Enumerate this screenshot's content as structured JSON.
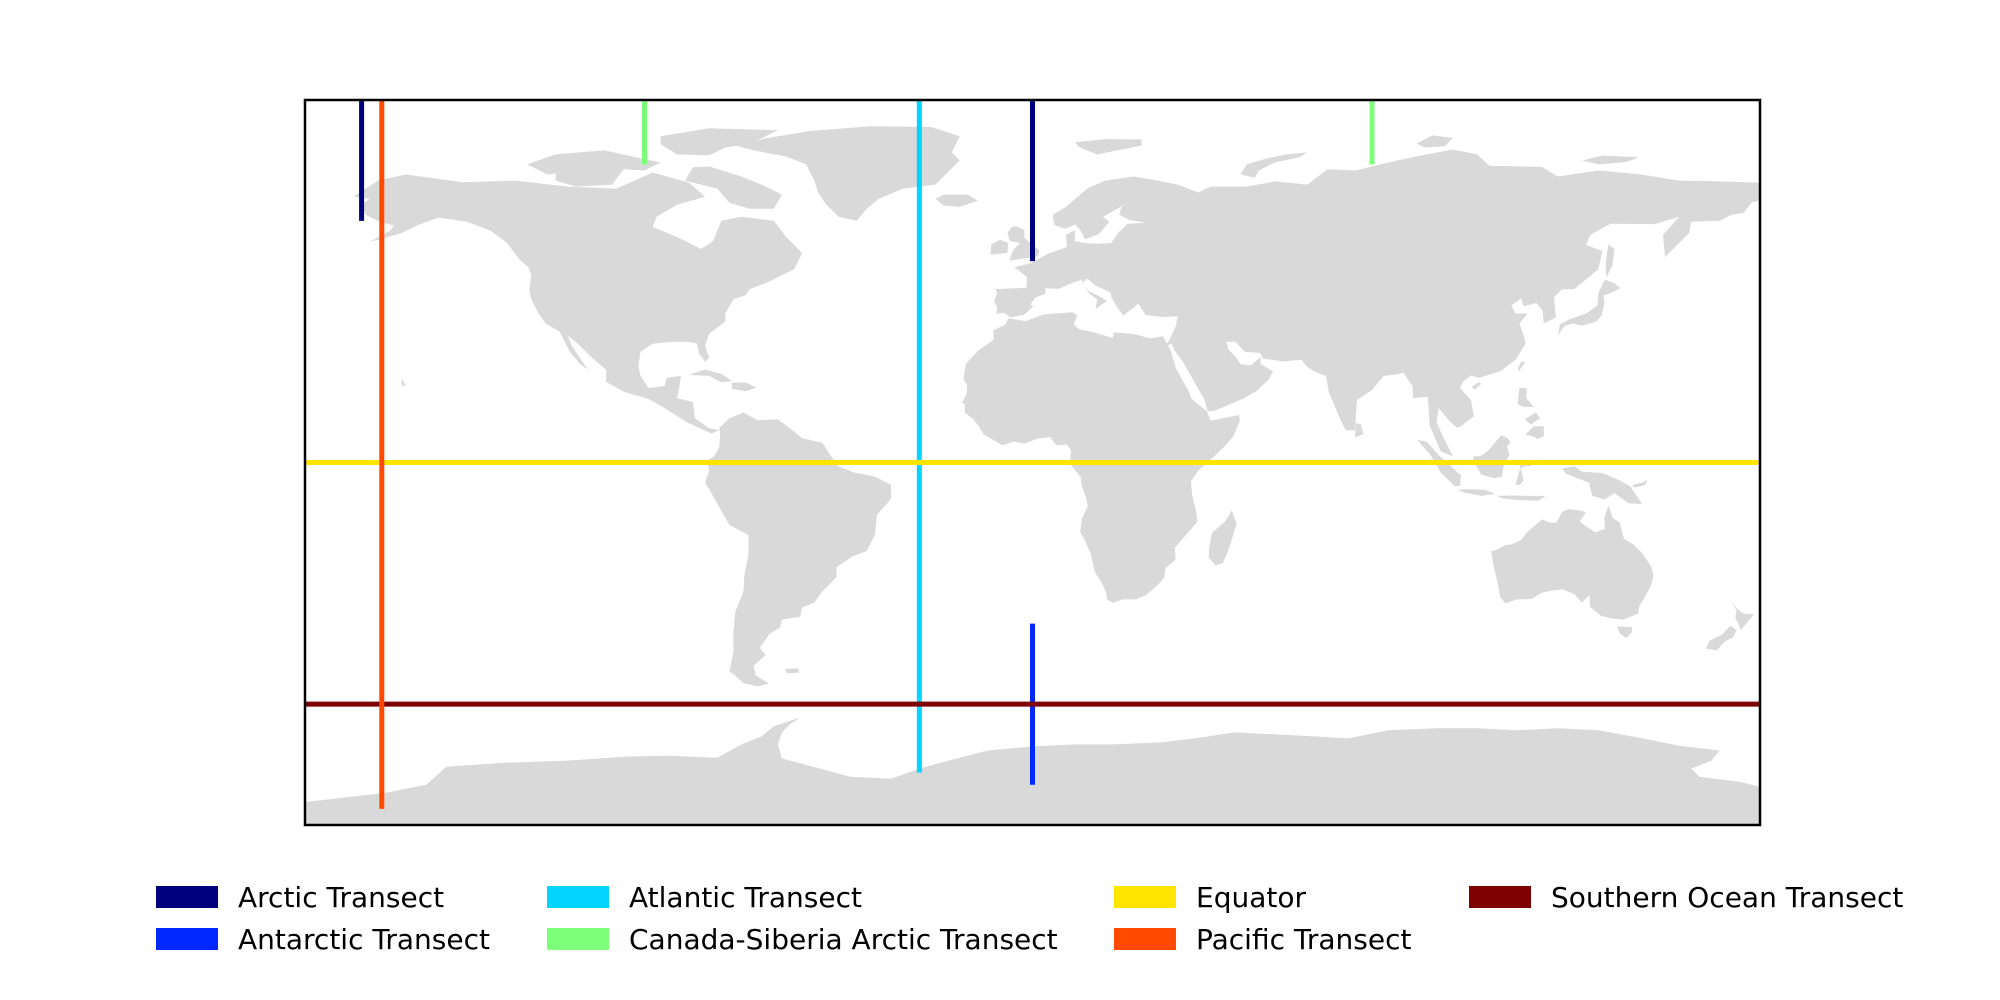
{
  "map": {
    "land_color": "#d9d9d9",
    "frame_color": "#000000",
    "lon_range": [
      -180,
      180
    ],
    "lat_range": [
      -90,
      90
    ]
  },
  "transects": [
    {
      "name": "Arctic Transect",
      "color": "#00007f",
      "kind": "meridian",
      "lon": -166,
      "lat_from": 60,
      "lat_to": 90
    },
    {
      "name": "Arctic Transect",
      "color": "#00007f",
      "kind": "meridian",
      "lon": 0,
      "lat_from": 50,
      "lat_to": 90
    },
    {
      "name": "Antarctic Transect",
      "color": "#0028ff",
      "kind": "meridian",
      "lon": 0,
      "lat_from": -80,
      "lat_to": -40
    },
    {
      "name": "Canada-Siberia Arctic Transect",
      "color": "#7cff79",
      "kind": "meridian",
      "lon": -96,
      "lat_from": 74,
      "lat_to": 90
    },
    {
      "name": "Canada-Siberia Arctic Transect",
      "color": "#7cff79",
      "kind": "meridian",
      "lon": 84,
      "lat_from": 74,
      "lat_to": 90
    },
    {
      "name": "Atlantic Transect",
      "color": "#00d4ff",
      "kind": "meridian",
      "lon": -28,
      "lat_from": -77,
      "lat_to": 90
    },
    {
      "name": "Equator",
      "color": "#ffe500",
      "kind": "parallel",
      "lat": 0,
      "lon_from": -180,
      "lon_to": 180
    },
    {
      "name": "Southern Ocean Transect",
      "color": "#7f0000",
      "kind": "parallel",
      "lat": -60,
      "lon_from": -180,
      "lon_to": 180
    },
    {
      "name": "Pacific Transect",
      "color": "#ff4a00",
      "kind": "meridian",
      "lon": -161,
      "lat_from": -86,
      "lat_to": 90
    }
  ],
  "legend": [
    {
      "label": "Arctic Transect",
      "color": "#00007f"
    },
    {
      "label": "Antarctic Transect",
      "color": "#0028ff"
    },
    {
      "label": "Atlantic Transect",
      "color": "#00d4ff"
    },
    {
      "label": "Canada-Siberia Arctic Transect",
      "color": "#7cff79"
    },
    {
      "label": "Equator",
      "color": "#ffe500"
    },
    {
      "label": "Pacific Transect",
      "color": "#ff4a00"
    },
    {
      "label": "Southern Ocean Transect",
      "color": "#7f0000"
    }
  ]
}
